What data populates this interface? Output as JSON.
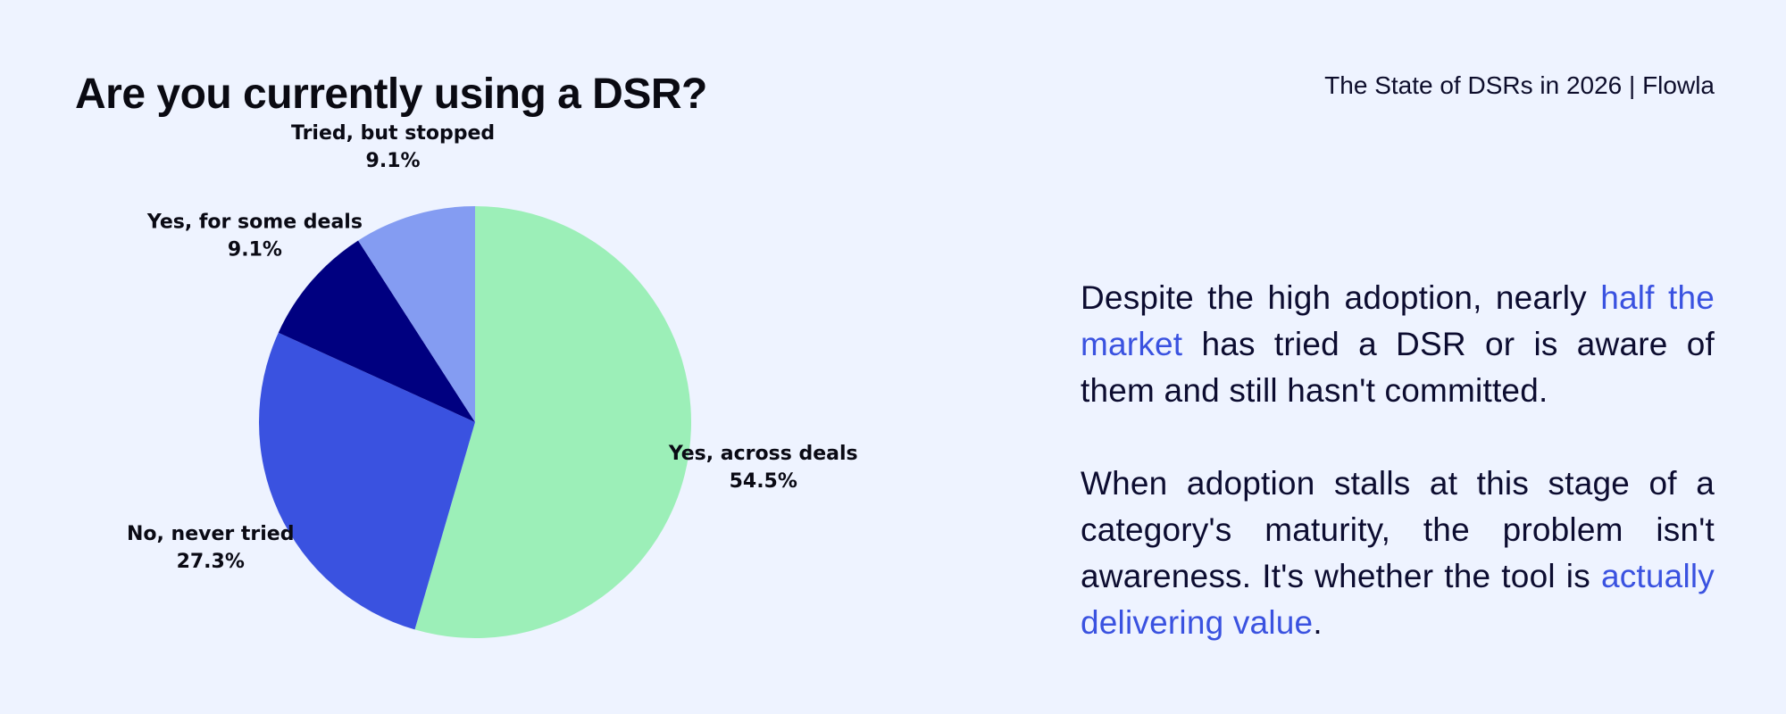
{
  "header": {
    "title": "Are you currently using a DSR?",
    "brand": "The State of DSRs in 2026 | Flowla"
  },
  "chart_data": {
    "type": "pie",
    "title": "Are you currently using a DSR?",
    "slices": [
      {
        "label": "Yes, across deals",
        "value": 54.5,
        "display": "54.5%",
        "color": "#9cefb8"
      },
      {
        "label": "No, never tried",
        "value": 27.3,
        "display": "27.3%",
        "color": "#3a52e0"
      },
      {
        "label": "Yes, for some deals",
        "value": 9.1,
        "display": "9.1%",
        "color": "#000080"
      },
      {
        "label": "Tried, but stopped",
        "value": 9.1,
        "display": "9.1%",
        "color": "#849cf2"
      }
    ],
    "start": "12 o'clock",
    "direction": "clockwise",
    "legend": "none"
  },
  "commentary": {
    "p1": {
      "before": "Despite the high adoption, nearly ",
      "highlight": "half the market",
      "after": " has tried a DSR or is aware of them and still hasn't committed."
    },
    "p2": {
      "before": "When adoption stalls at this stage of a category's maturity, the problem isn't awareness. It's whether the tool is ",
      "highlight": "actually delivering value",
      "after": "."
    },
    "highlight_color": "#3a52e0"
  }
}
